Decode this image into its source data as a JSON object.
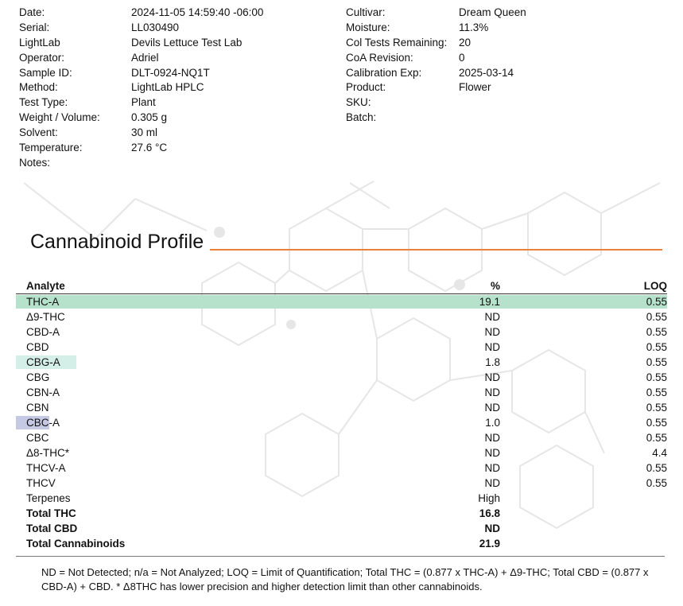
{
  "meta_left": [
    {
      "label": "Date:",
      "value": "2024-11-05 14:59:40 -06:00"
    },
    {
      "label": "Serial:",
      "value": "LL030490"
    },
    {
      "label": "LightLab",
      "value": "Devils Lettuce Test Lab"
    },
    {
      "label": "Operator:",
      "value": "Adriel"
    },
    {
      "label": "Sample ID:",
      "value": "DLT-0924-NQ1T"
    },
    {
      "label": "Method:",
      "value": "LightLab HPLC"
    },
    {
      "label": "Test Type:",
      "value": "Plant"
    },
    {
      "label": "Weight / Volume:",
      "value": "0.305 g"
    },
    {
      "label": "Solvent:",
      "value": "30 ml"
    },
    {
      "label": "Temperature:",
      "value": "27.6 °C"
    },
    {
      "label": "Notes:",
      "value": ""
    }
  ],
  "meta_right": [
    {
      "label": "Cultivar:",
      "value": "Dream Queen"
    },
    {
      "label": "Moisture:",
      "value": "11.3%"
    },
    {
      "label": "Col Tests Remaining:",
      "value": "20"
    },
    {
      "label": "CoA Revision:",
      "value": "0"
    },
    {
      "label": "Calibration Exp:",
      "value": "2025-03-14"
    },
    {
      "label": "Product:",
      "value": "Flower"
    },
    {
      "label": "SKU:",
      "value": ""
    },
    {
      "label": "Batch:",
      "value": ""
    }
  ],
  "section_title": "Cannabinoid Profile",
  "table": {
    "headers": {
      "analyte": "Analyte",
      "pct": "%",
      "loq": "LOQ"
    },
    "rows": [
      {
        "analyte": "THC-A",
        "pct": "19.1",
        "loq": "0.55"
      },
      {
        "analyte": "Δ9-THC",
        "pct": "ND",
        "loq": "0.55"
      },
      {
        "analyte": "CBD-A",
        "pct": "ND",
        "loq": "0.55"
      },
      {
        "analyte": "CBD",
        "pct": "ND",
        "loq": "0.55"
      },
      {
        "analyte": "CBG-A",
        "pct": "1.8",
        "loq": "0.55"
      },
      {
        "analyte": "CBG",
        "pct": "ND",
        "loq": "0.55"
      },
      {
        "analyte": "CBN-A",
        "pct": "ND",
        "loq": "0.55"
      },
      {
        "analyte": "CBN",
        "pct": "ND",
        "loq": "0.55"
      },
      {
        "analyte": "CBC-A",
        "pct": "1.0",
        "loq": "0.55"
      },
      {
        "analyte": "CBC",
        "pct": "ND",
        "loq": "0.55"
      },
      {
        "analyte": "Δ8-THC*",
        "pct": "ND",
        "loq": "4.4"
      },
      {
        "analyte": "THCV-A",
        "pct": "ND",
        "loq": "0.55"
      },
      {
        "analyte": "THCV",
        "pct": "ND",
        "loq": "0.55"
      },
      {
        "analyte": "Terpenes",
        "pct": "High",
        "loq": ""
      },
      {
        "analyte": "Total THC",
        "pct": "16.8",
        "loq": ""
      },
      {
        "analyte": "Total CBD",
        "pct": "ND",
        "loq": ""
      },
      {
        "analyte": "Total Cannabinoids",
        "pct": "21.9",
        "loq": ""
      }
    ]
  },
  "footnote": "ND = Not Detected; n/a = Not Analyzed;  LOQ = Limit of Quantification; Total THC = (0.877 x THC-A) + Δ9-THC; Total CBD = (0.877 x CBD-A) + CBD. * Δ8THC has lower precision and higher detection limit than other cannabinoids.",
  "colors": {
    "accent_rule": "#e8823c",
    "thca_highlight": "#b6e2cb",
    "cbga_highlight": "#d4eee8",
    "cbca_highlight": "#c5c9e3"
  }
}
